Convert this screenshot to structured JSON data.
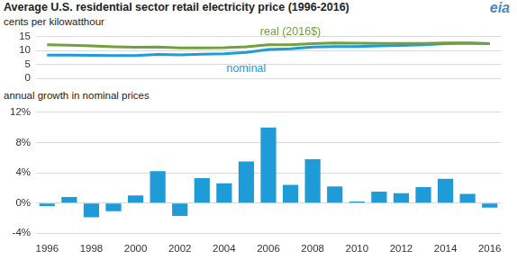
{
  "chart_data": [
    {
      "type": "line",
      "title": "Average U.S. residential sector retail electricity price (1996-2016)",
      "ylabel": "cents per kilowatthour",
      "annotations": [
        "eia"
      ],
      "categories": [
        "1996",
        null,
        "1998",
        null,
        "2000",
        null,
        "2002",
        null,
        "2004",
        null,
        "2006",
        null,
        "2008",
        null,
        "2010",
        null,
        "2012",
        null,
        "2014",
        null,
        "2016"
      ],
      "series": [
        {
          "name": "real (2016$)",
          "color": "#72a03c",
          "values": [
            12.1,
            12.0,
            11.7,
            11.4,
            11.2,
            11.3,
            11.0,
            11.0,
            11.1,
            11.4,
            12.1,
            12.1,
            12.5,
            12.8,
            12.7,
            12.6,
            12.6,
            12.6,
            12.8,
            12.8,
            12.5
          ]
        },
        {
          "name": "nominal",
          "color": "#1f9bd7",
          "values": [
            8.4,
            8.4,
            8.3,
            8.2,
            8.2,
            8.6,
            8.5,
            8.7,
            8.9,
            9.4,
            10.4,
            10.7,
            11.3,
            11.5,
            11.5,
            11.7,
            11.9,
            12.1,
            12.5,
            12.7,
            12.5
          ]
        }
      ],
      "ylim": [
        0,
        15
      ],
      "yticks": [
        0,
        5,
        10,
        15
      ],
      "grid": true,
      "tick_labels": "y"
    },
    {
      "type": "bar",
      "title": "annual growth in nominal prices",
      "categories": [
        "1996",
        null,
        "1998",
        null,
        "2000",
        null,
        "2002",
        null,
        "2004",
        null,
        "2006",
        null,
        "2008",
        null,
        "2010",
        null,
        "2012",
        null,
        "2014",
        null,
        "2016"
      ],
      "values": [
        -0.4,
        0.8,
        -1.9,
        -1.1,
        1.0,
        4.2,
        -1.7,
        3.3,
        2.6,
        5.5,
        10.0,
        2.4,
        5.8,
        2.2,
        0.2,
        1.5,
        1.3,
        2.1,
        3.2,
        1.2,
        -0.6
      ],
      "color": "#1f9bd7",
      "ylim": [
        -4,
        12
      ],
      "yticks": [
        {
          "value": -4,
          "label": "-4%"
        },
        {
          "value": 0,
          "label": "0%"
        },
        {
          "value": 4,
          "label": "4%"
        },
        {
          "value": 8,
          "label": "8%"
        },
        {
          "value": 12,
          "label": "12%"
        }
      ],
      "grid": true
    }
  ]
}
